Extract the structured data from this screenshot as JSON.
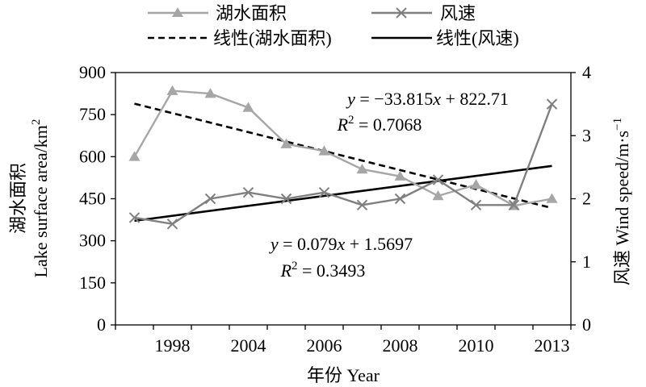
{
  "chart_data": {
    "type": "line",
    "x_categories": [
      "",
      "1998",
      "",
      "2004",
      "",
      "2006",
      "",
      "2008",
      "",
      "2010",
      "",
      "2013"
    ],
    "x_tick_labels": [
      "1998",
      "2004",
      "2006",
      "2008",
      "2010",
      "2013"
    ],
    "xlabel": "年份 Year",
    "ylabel_left": [
      "湖水面积",
      "Lake surface area/km",
      "2"
    ],
    "ylabel_right": [
      "风速 Wind speed/m·s",
      "−1"
    ],
    "ylim_left": [
      0,
      900
    ],
    "yticks_left": [
      0,
      150,
      300,
      450,
      600,
      750,
      900
    ],
    "ylim_right": [
      0,
      4
    ],
    "yticks_right": [
      0,
      1,
      2,
      3,
      4
    ],
    "series": [
      {
        "name": "湖水面积",
        "axis": "left",
        "marker": "triangle",
        "color": "#a6a6a6",
        "values": [
          600,
          835,
          825,
          775,
          645,
          620,
          555,
          530,
          460,
          500,
          425,
          450
        ]
      },
      {
        "name": "风速",
        "axis": "right",
        "marker": "x",
        "color": "#7f7f7f",
        "values": [
          1.7,
          1.6,
          2.0,
          2.1,
          2.0,
          2.1,
          1.9,
          2.0,
          2.3,
          1.9,
          1.9,
          3.5
        ]
      }
    ],
    "trendlines": [
      {
        "name": "线性(湖水面积)",
        "axis": "left",
        "style": "dashed",
        "color": "#000000",
        "start": 789,
        "end": 417
      },
      {
        "name": "线性(风速)",
        "axis": "right",
        "style": "solid",
        "color": "#000000",
        "start": 1.65,
        "end": 2.52
      }
    ],
    "annotations": {
      "eq_area": {
        "prefix": "y",
        "body": " = −33.815",
        "var": "x",
        "suffix": " + 822.71"
      },
      "r2_area": {
        "letter": "R",
        "sup": "2",
        "body": " = 0.7068"
      },
      "eq_wind": {
        "prefix": "y",
        "body": " = 0.079",
        "var": "x",
        "suffix": " + 1.5697"
      },
      "r2_wind": {
        "letter": "R",
        "sup": "2",
        "body": " = 0.3493"
      }
    },
    "legend_position": "top"
  }
}
